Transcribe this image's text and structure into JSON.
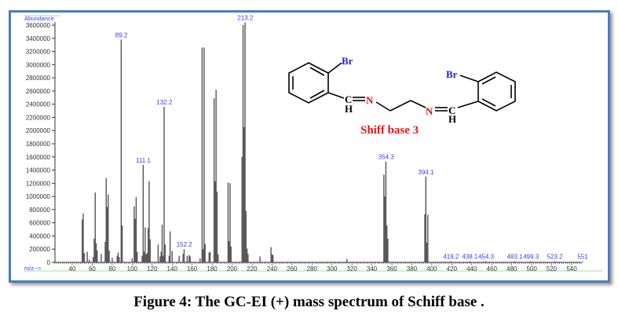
{
  "caption": "Figure 4: The GC-EI (+) mass spectrum of Schiff base .",
  "molecule": {
    "name": "Shiff base 3",
    "atoms": {
      "br1": "Br",
      "br2": "Br",
      "c1": "C",
      "c2": "C",
      "h1": "H",
      "h2": "H",
      "n1": "N",
      "n2": "N"
    },
    "colors": {
      "br": "#2020e0",
      "n": "#e01010",
      "name": "#ee1111",
      "c": "#000000"
    }
  },
  "chart_data": {
    "type": "bar",
    "title": "",
    "xlabel": "m/z-->",
    "ylabel": "Abundance",
    "xlim": [
      20,
      555
    ],
    "ylim": [
      0,
      3600000
    ],
    "grid": false,
    "bar_color": "#555555",
    "label_color": "#3a3aff",
    "x_ticks": [
      40,
      60,
      80,
      100,
      120,
      140,
      160,
      180,
      200,
      220,
      240,
      260,
      280,
      300,
      320,
      340,
      360,
      380,
      400,
      420,
      440,
      460,
      480,
      500,
      520,
      540
    ],
    "y_ticks": [
      0,
      200000,
      400000,
      600000,
      800000,
      1000000,
      1200000,
      1400000,
      1600000,
      1800000,
      2000000,
      2200000,
      2400000,
      2600000,
      2800000,
      3000000,
      3200000,
      3400000,
      3600000
    ],
    "peaks": [
      [
        50,
        650000
      ],
      [
        51,
        740000
      ],
      [
        52,
        140000
      ],
      [
        55,
        160000
      ],
      [
        57,
        40000
      ],
      [
        61,
        80000
      ],
      [
        62,
        360000
      ],
      [
        63,
        1060000
      ],
      [
        64,
        290000
      ],
      [
        65,
        180000
      ],
      [
        69,
        130000
      ],
      [
        73,
        310000
      ],
      [
        74,
        1280000
      ],
      [
        75,
        840000
      ],
      [
        76,
        1030000
      ],
      [
        77,
        180000
      ],
      [
        80,
        70000
      ],
      [
        85,
        100000
      ],
      [
        86,
        150000
      ],
      [
        87,
        80000
      ],
      [
        89,
        3380000
      ],
      [
        90,
        560000
      ],
      [
        100,
        60000
      ],
      [
        102,
        850000
      ],
      [
        103,
        660000
      ],
      [
        104,
        990000
      ],
      [
        105,
        160000
      ],
      [
        110,
        100000
      ],
      [
        111,
        1480000
      ],
      [
        112,
        160000
      ],
      [
        113,
        530000
      ],
      [
        114,
        120000
      ],
      [
        115,
        140000
      ],
      [
        116,
        520000
      ],
      [
        117,
        1230000
      ],
      [
        118,
        350000
      ],
      [
        126,
        270000
      ],
      [
        128,
        90000
      ],
      [
        129,
        160000
      ],
      [
        130,
        570000
      ],
      [
        131,
        100000
      ],
      [
        132,
        2360000
      ],
      [
        133,
        270000
      ],
      [
        137,
        100000
      ],
      [
        138,
        470000
      ],
      [
        140,
        170000
      ],
      [
        147,
        100000
      ],
      [
        151,
        130000
      ],
      [
        152,
        200000
      ],
      [
        155,
        100000
      ],
      [
        157,
        110000
      ],
      [
        158,
        90000
      ],
      [
        168,
        60000
      ],
      [
        170,
        3260000
      ],
      [
        171,
        200000
      ],
      [
        172,
        3260000
      ],
      [
        173,
        280000
      ],
      [
        177,
        150000
      ],
      [
        178,
        160000
      ],
      [
        182,
        2490000
      ],
      [
        183,
        1230000
      ],
      [
        184,
        2620000
      ],
      [
        185,
        1070000
      ],
      [
        186,
        120000
      ],
      [
        196,
        1210000
      ],
      [
        197,
        320000
      ],
      [
        198,
        1200000
      ],
      [
        199,
        240000
      ],
      [
        210,
        1600000
      ],
      [
        211,
        3600000
      ],
      [
        212,
        2050000
      ],
      [
        213,
        3640000
      ],
      [
        214,
        780000
      ],
      [
        215,
        210000
      ],
      [
        216,
        130000
      ],
      [
        228,
        90000
      ],
      [
        239,
        230000
      ],
      [
        240,
        120000
      ],
      [
        241,
        110000
      ],
      [
        315,
        50000
      ],
      [
        352,
        1330000
      ],
      [
        353,
        1000000
      ],
      [
        354,
        1530000
      ],
      [
        355,
        560000
      ],
      [
        356,
        360000
      ],
      [
        393,
        730000
      ],
      [
        394,
        1300000
      ],
      [
        395,
        300000
      ],
      [
        396,
        720000
      ],
      [
        419,
        15000
      ],
      [
        438,
        15000
      ],
      [
        454,
        15000
      ],
      [
        483,
        15000
      ],
      [
        499,
        15000
      ],
      [
        523,
        15000
      ],
      [
        551,
        15000
      ]
    ],
    "peak_labels": [
      {
        "x": 89.2,
        "y": 3380000,
        "text": "89.2"
      },
      {
        "x": 111.1,
        "y": 1480000,
        "text": "111.1"
      },
      {
        "x": 132.2,
        "y": 2360000,
        "text": "132.2"
      },
      {
        "x": 152.2,
        "y": 200000,
        "text": "152.2"
      },
      {
        "x": 213.2,
        "y": 3640000,
        "text": "213.2"
      },
      {
        "x": 354.3,
        "y": 1530000,
        "text": "354.3"
      },
      {
        "x": 394.1,
        "y": 1300000,
        "text": "394.1"
      },
      {
        "x": 419.2,
        "y": 15000,
        "text": "419.2"
      },
      {
        "x": 438.1,
        "y": 15000,
        "text": "438.1"
      },
      {
        "x": 454.3,
        "y": 15000,
        "text": "454.3"
      },
      {
        "x": 483.1,
        "y": 15000,
        "text": "483.1"
      },
      {
        "x": 499.3,
        "y": 15000,
        "text": "499.3"
      },
      {
        "x": 523.2,
        "y": 15000,
        "text": "523.2"
      },
      {
        "x": 551,
        "y": 15000,
        "text": "551"
      }
    ]
  }
}
